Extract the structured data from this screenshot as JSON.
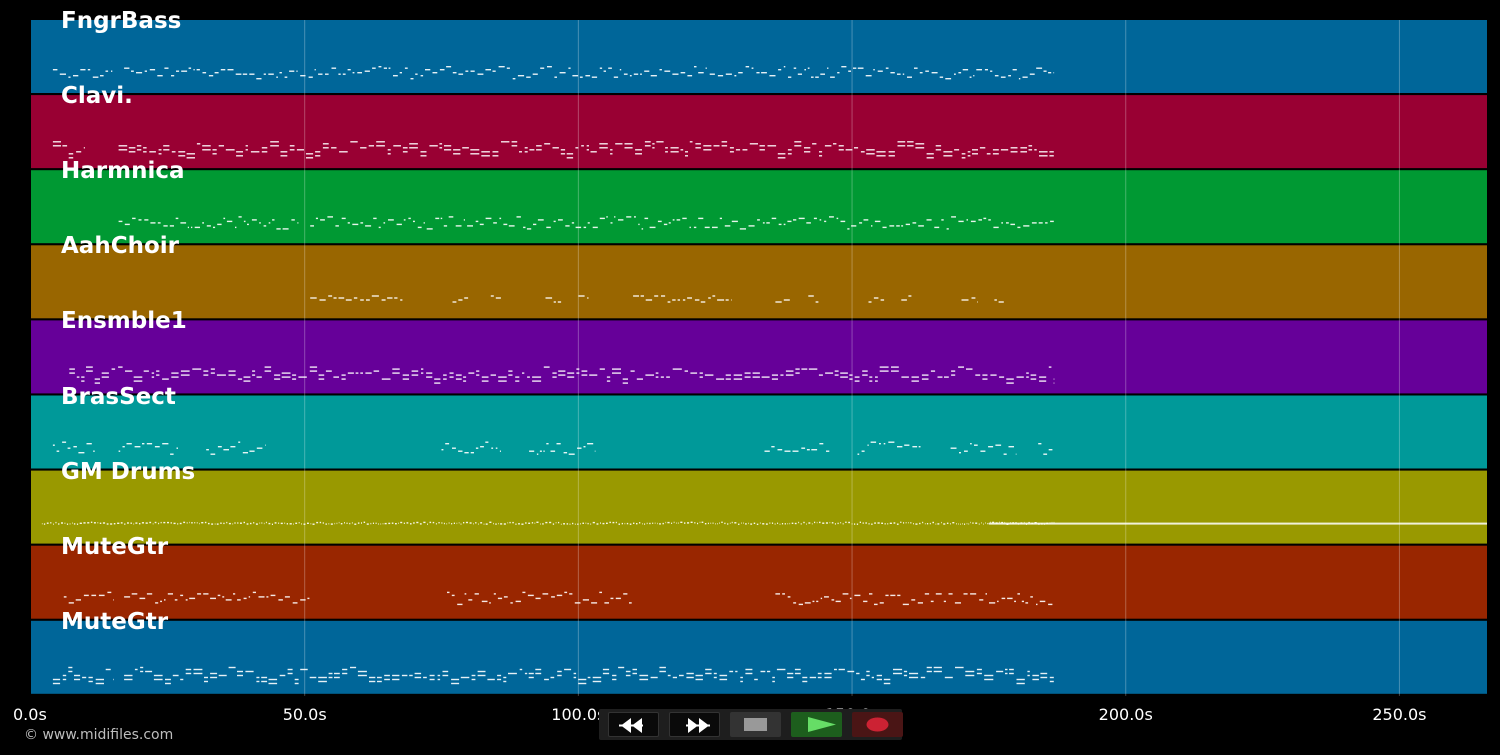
{
  "app": {
    "copyright": "© www.midifiles.com"
  },
  "timeline": {
    "max_seconds": 266,
    "gridline_seconds": [
      50,
      100,
      150,
      200,
      250
    ],
    "ticks": [
      {
        "seconds": 0,
        "label": "0.0s"
      },
      {
        "seconds": 50,
        "label": "50.0s"
      },
      {
        "seconds": 100,
        "label": "100.0s"
      },
      {
        "seconds": 150,
        "label": "150.0s"
      },
      {
        "seconds": 200,
        "label": "200.0s"
      },
      {
        "seconds": 250,
        "label": "250.0s"
      }
    ]
  },
  "tracks": [
    {
      "name": "FngrBass",
      "color": "#006699",
      "style": "melody",
      "segments": [
        [
          4,
          15
        ],
        [
          17,
          187
        ]
      ]
    },
    {
      "name": "Clavi.",
      "color": "#990033",
      "style": "chords",
      "segments": [
        [
          4,
          10
        ],
        [
          16,
          187
        ]
      ]
    },
    {
      "name": "Harmnica",
      "color": "#009933",
      "style": "melody",
      "segments": [
        [
          16,
          49
        ],
        [
          51,
          187
        ]
      ]
    },
    {
      "name": "AahChoir",
      "color": "#996600",
      "style": "sparse",
      "segments": [
        [
          51,
          68
        ],
        [
          77,
          80
        ],
        [
          84,
          86
        ],
        [
          94,
          97
        ],
        [
          100,
          102
        ],
        [
          110,
          128
        ],
        [
          136,
          139
        ],
        [
          142,
          144
        ],
        [
          153,
          156
        ],
        [
          159,
          161
        ],
        [
          170,
          173
        ],
        [
          176,
          178
        ]
      ]
    },
    {
      "name": "Ensmble1",
      "color": "#660099",
      "style": "chords",
      "segments": [
        [
          7,
          187
        ]
      ]
    },
    {
      "name": "BrasSect",
      "color": "#009999",
      "style": "phrases",
      "segments": [
        [
          4,
          12
        ],
        [
          16,
          27
        ],
        [
          32,
          43
        ],
        [
          75,
          86
        ],
        [
          91,
          103
        ],
        [
          134,
          146
        ],
        [
          151,
          163
        ],
        [
          168,
          180
        ],
        [
          184,
          187
        ]
      ]
    },
    {
      "name": "GM Drums",
      "color": "#999900",
      "style": "drums",
      "segments": [
        [
          2,
          187
        ]
      ],
      "extra_line": [
        175,
        266
      ]
    },
    {
      "name": "MuteGtr",
      "color": "#992600",
      "style": "melody",
      "segments": [
        [
          6,
          15
        ],
        [
          17,
          51
        ],
        [
          76,
          110
        ],
        [
          136,
          187
        ]
      ]
    },
    {
      "name": "MuteGtr",
      "color": "#006699",
      "style": "chords",
      "segments": [
        [
          4,
          15
        ],
        [
          17,
          187
        ]
      ]
    }
  ],
  "transport": {
    "rewind": {
      "icon": "rewind-icon"
    },
    "fast_forward": {
      "icon": "fast-forward-icon"
    },
    "stop": {
      "icon": "stop-icon"
    },
    "play": {
      "icon": "play-icon",
      "color": "#33aa33"
    },
    "record": {
      "icon": "record-icon",
      "color": "#cc2233"
    }
  }
}
